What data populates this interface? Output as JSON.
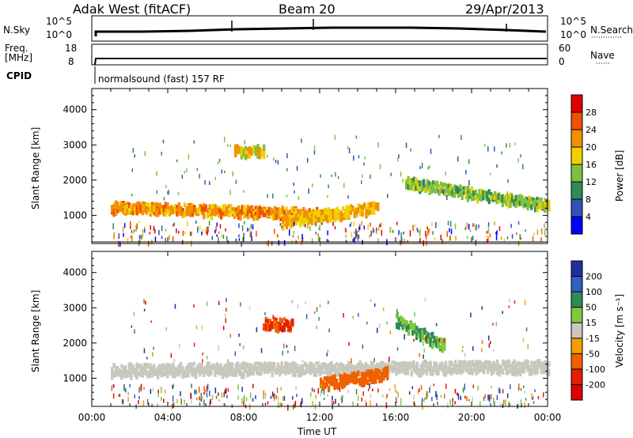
{
  "header": {
    "station": "Adak West (fitACF)",
    "beam": "Beam 20",
    "date": "29/Apr/2013"
  },
  "nsky_panel": {
    "left_label": "N.Sky",
    "right_label": "N.Search",
    "left_ticks": [
      "10^5",
      "10^0"
    ],
    "right_ticks": [
      "10^5",
      "10^0"
    ]
  },
  "freq_panel": {
    "left_label_line1": "Freq.",
    "left_label_line2": "[MHz]",
    "right_label": "Nave",
    "left_ticks": [
      "18",
      "8"
    ],
    "right_ticks": [
      "60",
      "0"
    ]
  },
  "cpid": {
    "label": "CPID",
    "program": "normalsound (fast) 157 RF"
  },
  "chart_data": [
    {
      "type": "heatmap",
      "name": "power",
      "ylabel": "Slant Range [km]",
      "y_ticks": [
        1000,
        2000,
        3000,
        4000
      ],
      "y_tick_labels": [
        "1000",
        "2000",
        "3000",
        "4000"
      ],
      "ylim": [
        200,
        4600
      ],
      "colorbar_label": "Power [dB]",
      "colorbar_ticks": [
        "4",
        "8",
        "12",
        "16",
        "20",
        "24",
        "28"
      ],
      "colorbar_colors": [
        "#0000ff",
        "#2f54b4",
        "#2e8b57",
        "#80c040",
        "#f0d000",
        "#f09000",
        "#f05000",
        "#e00000"
      ],
      "features": [
        {
          "t_start": 1.0,
          "t_end": 12.5,
          "range_start": 1300,
          "range_end": 1100,
          "value": 22,
          "note": "main echo band"
        },
        {
          "t_start": 10.0,
          "t_end": 15.0,
          "range_start": 900,
          "range_end": 1300,
          "value": 20
        },
        {
          "t_start": 16.5,
          "t_end": 24.0,
          "range_start": 2000,
          "range_end": 1350,
          "value": 14
        },
        {
          "t_start": 7.5,
          "t_end": 9.0,
          "range_start": 2900,
          "range_end": 2900,
          "value": 18
        }
      ]
    },
    {
      "type": "heatmap",
      "name": "velocity",
      "ylabel": "Slant Range [km]",
      "y_ticks": [
        1000,
        2000,
        3000,
        4000
      ],
      "y_tick_labels": [
        "1000",
        "2000",
        "3000",
        "4000"
      ],
      "ylim": [
        200,
        4600
      ],
      "colorbar_label": "Velocity [m s⁻¹]",
      "colorbar_ticks": [
        "200",
        "100",
        "50",
        "15",
        "-15",
        "-50",
        "-100",
        "-200"
      ],
      "colorbar_colors": [
        "#2030a0",
        "#3060c0",
        "#2e8b57",
        "#80c840",
        "#c8c8c0",
        "#f0a000",
        "#f06000",
        "#e02000",
        "#e00000"
      ],
      "features": [
        {
          "t_start": 1.0,
          "t_end": 24.0,
          "range_start": 1300,
          "range_end": 1400,
          "value": 0,
          "note": "ground scatter (grey)"
        },
        {
          "t_start": 12.0,
          "t_end": 15.5,
          "range_start": 900,
          "range_end": 1200,
          "value": -60
        },
        {
          "t_start": 9.0,
          "t_end": 10.5,
          "range_start": 2600,
          "range_end": 2600,
          "value": -100
        },
        {
          "t_start": 16.0,
          "t_end": 18.5,
          "range_start": 2700,
          "range_end": 2000,
          "value": 30
        }
      ]
    }
  ],
  "x_axis": {
    "label": "Time UT",
    "ticks": [
      "00:00",
      "04:00",
      "08:00",
      "12:00",
      "16:00",
      "20:00",
      "00:00"
    ]
  }
}
